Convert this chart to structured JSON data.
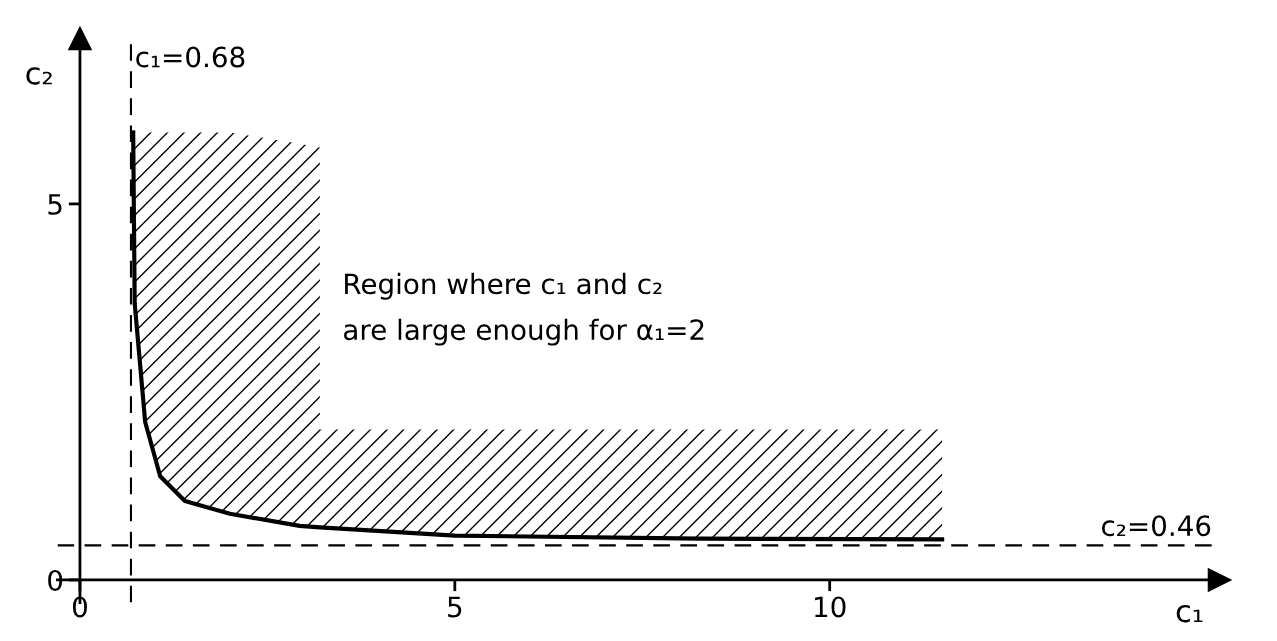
{
  "chart_data": {
    "type": "line",
    "xlabel": "c₁",
    "ylabel": "c₂",
    "xlim": [
      -0.3,
      15.2
    ],
    "ylim": [
      -0.3,
      7.2
    ],
    "xticks": [
      0,
      5,
      10
    ],
    "yticks": [
      0,
      5
    ],
    "grid": false,
    "series": [
      {
        "color": "#000000",
        "x": [
          0.71,
          0.73,
          0.87,
          1.07,
          1.4,
          2.0,
          2.93,
          3.2,
          3.2,
          5,
          8.27,
          11.5
        ],
        "values": [
          5.95,
          3.68,
          2.1,
          1.38,
          1.05,
          0.88,
          0.72,
          0.7,
          0.7,
          0.59,
          0.55,
          0.54
        ],
        "lower": [
          5.95,
          3.68,
          2.1,
          1.38,
          1.05,
          0.88,
          0.72,
          0.7,
          0.7,
          0.59,
          0.55,
          0.54
        ],
        "upper": [
          5.95,
          5.95,
          5.95,
          5.95,
          5.95,
          5.95,
          5.8,
          5.75,
          2.0,
          2.0,
          2.0,
          2.0
        ]
      }
    ],
    "ref_lines": [
      {
        "axis": "x",
        "value": 0.68,
        "label": "c₁=0.68",
        "line_style": "dashed",
        "color": "#000000"
      },
      {
        "axis": "y",
        "value": 0.46,
        "label": "c₂=0.46",
        "line_style": "dashed",
        "color": "#000000"
      }
    ],
    "annotations": [
      "Region where c₁ and c₂\nare large enough for α₁=2"
    ]
  }
}
